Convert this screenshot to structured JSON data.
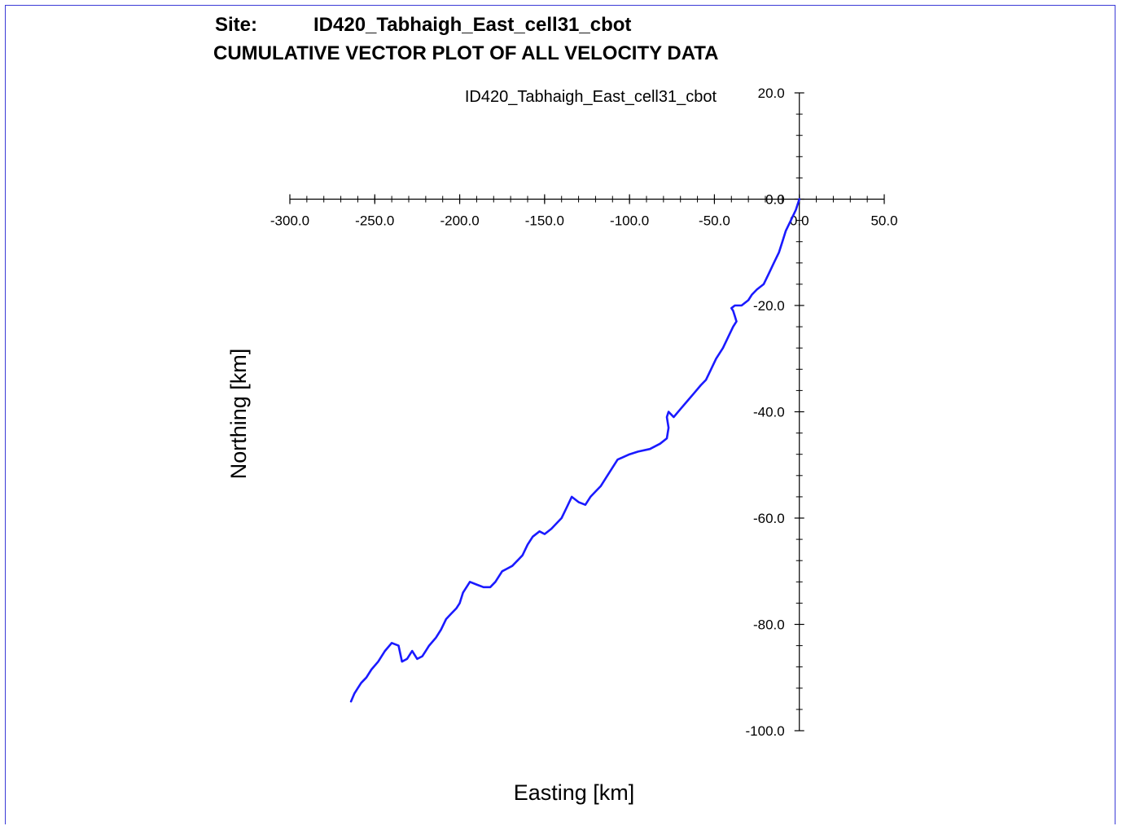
{
  "header": {
    "site_label": "Site:",
    "site_name": "ID420_Tabhaigh_East_cell31_cbot",
    "plot_title": "CUMULATIVE VECTOR PLOT OF ALL VELOCITY DATA"
  },
  "colors": {
    "frame": "#3a3ad6",
    "series": "#1a1aff",
    "axis": "#000000"
  },
  "chart_data": {
    "type": "line",
    "title": "ID420_Tabhaigh_East_cell31_cbot",
    "xlabel": "Easting [km]",
    "ylabel": "Northing [km]",
    "xlim": [
      -300,
      50
    ],
    "ylim": [
      -100,
      20
    ],
    "x_ticks": [
      -300,
      -250,
      -200,
      -150,
      -100,
      -50,
      0,
      50
    ],
    "x_tick_labels": [
      "-300.0",
      "-250.0",
      "-200.0",
      "-150.0",
      "-100.0",
      "-50.0",
      "0.0",
      "50.0"
    ],
    "y_ticks": [
      20,
      0,
      -20,
      -40,
      -60,
      -80,
      -100
    ],
    "y_tick_labels": [
      "20.0",
      "0.0",
      "-20.0",
      "-40.0",
      "-60.0",
      "-80.0",
      "-100.0"
    ],
    "grid": false,
    "legend": "none",
    "series": [
      {
        "x": [
          0,
          -2,
          -5,
          -8,
          -10,
          -12,
          -15,
          -18,
          -21,
          -25,
          -28,
          -30,
          -34,
          -38,
          -40,
          -39,
          -38,
          -37,
          -39,
          -42,
          -45,
          -49,
          -52,
          -55,
          -58,
          -62,
          -66,
          -70,
          -74,
          -77,
          -78,
          -77,
          -78,
          -82,
          -88,
          -95,
          -100,
          -107,
          -113,
          -117,
          -120,
          -123,
          -126,
          -130,
          -134,
          -137,
          -140,
          -143,
          -146,
          -150,
          -153,
          -157,
          -160,
          -163,
          -166,
          -169,
          -172,
          -175,
          -179,
          -182,
          -186,
          -190,
          -194,
          -198,
          -200,
          -202,
          -205,
          -208,
          -211,
          -214,
          -218,
          -220,
          -222,
          -225,
          -228,
          -231,
          -234,
          -236,
          -240,
          -244,
          -248,
          -252,
          -255,
          -258,
          -260,
          -262,
          -264
        ],
        "y": [
          0,
          -2,
          -4,
          -6,
          -8,
          -10,
          -12,
          -14,
          -16,
          -17,
          -18,
          -19,
          -20,
          -20,
          -20.5,
          -21,
          -22,
          -23,
          -24,
          -26,
          -28,
          -30,
          -32,
          -34,
          -35,
          -36.5,
          -38,
          -39.5,
          -41,
          -40,
          -41,
          -43,
          -45,
          -46,
          -47,
          -47.5,
          -48,
          -49,
          -52,
          -54,
          -55,
          -56,
          -57.5,
          -57,
          -56,
          -58,
          -60,
          -61,
          -62,
          -63,
          -62.5,
          -63.5,
          -65,
          -67,
          -68,
          -69,
          -69.5,
          -70,
          -72,
          -73,
          -73,
          -72.5,
          -72,
          -74,
          -76,
          -77,
          -78,
          -79,
          -81,
          -82.5,
          -84,
          -85,
          -86,
          -86.5,
          -85,
          -86.5,
          -87,
          -84,
          -83.5,
          -85,
          -87,
          -88.5,
          -90,
          -91,
          -92,
          -93,
          -94.5
        ]
      }
    ]
  }
}
